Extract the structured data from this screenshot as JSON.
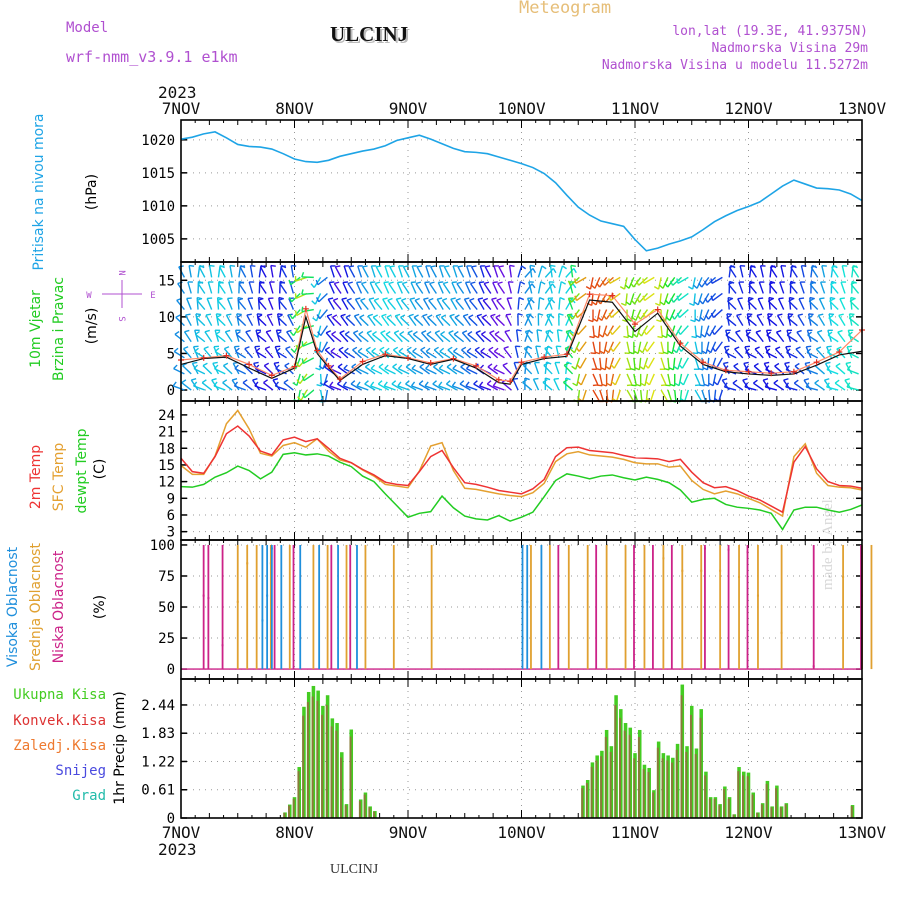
{
  "header": {
    "model_label": "Model",
    "model_name": "wrf-nmm_v3.9.1 e1km",
    "station": "ULCINJ",
    "title": "Meteogram",
    "lonlat": "lon,lat (19.3E, 41.9375N)",
    "elevation": "Nadmorska Visina 29m",
    "model_elevation": "Nadmorska Visina u modelu 11.5272m",
    "footer_station": "ULCINJ",
    "credit": "made by Angel",
    "year": "2023"
  },
  "time_axis": {
    "labels": [
      "7NOV",
      "8NOV",
      "9NOV",
      "10NOV",
      "11NOV",
      "12NOV",
      "13NOV"
    ]
  },
  "colors": {
    "pressure": "#1ea4e6",
    "temp2m": "#ee3333",
    "sfctemp": "#e4a030",
    "dewpt": "#22cc22",
    "high_cloud": "#1f8fdc",
    "mid_cloud": "#e0a030",
    "low_cloud": "#cc2288",
    "total_precip": "#44cc22",
    "conv_precip": "#dd3333",
    "grid_precip": "#ee7a30",
    "snow": "#4a4adf",
    "graupel": "#22bbaa",
    "label_purple": "#b050d0"
  },
  "chart_data": [
    {
      "type": "line",
      "panel": "pressure",
      "ylabel": "Pritisak na nivou mora",
      "units": "(hPa)",
      "ylim": [
        1001.5,
        1023
      ],
      "yticks": [
        1005,
        1010,
        1015,
        1020
      ],
      "grid": true,
      "x_days": [
        0,
        0.1,
        0.2,
        0.3,
        0.4,
        0.5,
        0.6,
        0.7,
        0.8,
        0.9,
        1.0,
        1.1,
        1.2,
        1.3,
        1.4,
        1.5,
        1.6,
        1.7,
        1.8,
        1.9,
        2.0,
        2.1,
        2.2,
        2.3,
        2.4,
        2.5,
        2.6,
        2.7,
        2.8,
        2.9,
        3.0,
        3.1,
        3.2,
        3.3,
        3.4,
        3.5,
        3.6,
        3.7,
        3.8,
        3.9,
        4.0,
        4.1,
        4.2,
        4.3,
        4.4,
        4.5,
        4.6,
        4.7,
        4.8,
        4.9,
        5.0,
        5.1,
        5.2,
        5.3,
        5.4,
        5.5,
        5.6,
        5.7,
        5.8,
        5.9,
        6.0
      ],
      "series": [
        {
          "values": [
            1020.1,
            1020.4,
            1020.9,
            1021.2,
            1020.3,
            1019.3,
            1019.0,
            1018.9,
            1018.6,
            1017.9,
            1017.1,
            1016.7,
            1016.6,
            1016.9,
            1017.5,
            1017.9,
            1018.3,
            1018.6,
            1019.1,
            1019.9,
            1020.3,
            1020.7,
            1020.1,
            1019.4,
            1018.7,
            1018.2,
            1018.1,
            1017.9,
            1017.4,
            1016.9,
            1016.4,
            1015.8,
            1014.9,
            1013.5,
            1011.6,
            1009.8,
            1008.6,
            1007.7,
            1007.3,
            1006.9,
            1004.9,
            1003.2,
            1003.6,
            1004.2,
            1004.7,
            1005.3,
            1006.4,
            1007.6,
            1008.5,
            1009.3,
            1009.9,
            1010.6,
            1011.8,
            1013.0,
            1013.9,
            1013.3,
            1012.7,
            1012.6,
            1012.4,
            1011.8,
            1010.8
          ]
        }
      ]
    },
    {
      "type": "line",
      "panel": "wind",
      "ylabel": "10m Vjetar Brzina i Pravac",
      "units": "(m/s)",
      "ylim": [
        -1.5,
        17.5
      ],
      "yticks": [
        0,
        5,
        10,
        15
      ],
      "grid": true,
      "compass": {
        "n": "N",
        "s": "S",
        "e": "E",
        "w": "W"
      },
      "x_days": [
        0,
        0.2,
        0.4,
        0.6,
        0.8,
        1.0,
        1.1,
        1.2,
        1.3,
        1.4,
        1.6,
        1.8,
        2.0,
        2.2,
        2.4,
        2.6,
        2.8,
        2.9,
        3.0,
        3.2,
        3.4,
        3.6,
        3.8,
        4.0,
        4.2,
        4.4,
        4.6,
        4.8,
        5.0,
        5.2,
        5.4,
        5.6,
        5.8,
        6.0
      ],
      "series": [
        {
          "values": [
            3.5,
            4.3,
            4.5,
            3.0,
            1.6,
            3.0,
            10.0,
            5.0,
            3.1,
            1.3,
            3.5,
            4.7,
            4.3,
            3.5,
            4.2,
            3.0,
            1.0,
            0.8,
            3.5,
            4.3,
            4.6,
            12.3,
            12.0,
            8.0,
            10.5,
            6.0,
            3.5,
            2.5,
            2.2,
            2.0,
            2.2,
            3.4,
            4.8,
            5.3
          ]
        },
        {
          "values": [
            4.1,
            4.4,
            4.7,
            3.5,
            2.0,
            3.2,
            11.1,
            5.4,
            3.3,
            1.5,
            3.9,
            4.9,
            4.4,
            3.7,
            4.3,
            3.3,
            1.4,
            1.2,
            3.8,
            4.5,
            4.9,
            13.1,
            12.9,
            9.0,
            11.0,
            6.4,
            3.8,
            2.7,
            2.5,
            2.3,
            2.5,
            3.8,
            5.2,
            8.2
          ]
        }
      ]
    },
    {
      "type": "line",
      "panel": "temperature",
      "ylabel": "2m Temp / SFC Temp / dewpt Temp",
      "units": "(C)",
      "ylim": [
        1.5,
        26.5
      ],
      "yticks": [
        3,
        6,
        9,
        12,
        15,
        18,
        21,
        24
      ],
      "grid": true,
      "x_days": [
        0,
        0.1,
        0.2,
        0.3,
        0.4,
        0.5,
        0.6,
        0.7,
        0.8,
        0.9,
        1.0,
        1.1,
        1.2,
        1.3,
        1.4,
        1.5,
        1.6,
        1.7,
        1.8,
        1.9,
        2.0,
        2.1,
        2.2,
        2.3,
        2.4,
        2.5,
        2.6,
        2.7,
        2.8,
        2.9,
        3.0,
        3.1,
        3.2,
        3.3,
        3.4,
        3.5,
        3.6,
        3.7,
        3.8,
        3.9,
        4.0,
        4.1,
        4.2,
        4.3,
        4.4,
        4.5,
        4.6,
        4.7,
        4.8,
        4.9,
        5.0,
        5.1,
        5.2,
        5.3,
        5.4,
        5.5,
        5.6,
        5.7,
        5.8,
        5.9,
        6.0
      ],
      "series": [
        {
          "values": [
            16.2,
            13.8,
            13.5,
            16.5,
            20.6,
            22.0,
            20.2,
            17.5,
            16.8,
            19.5,
            20.0,
            19.2,
            19.7,
            18.0,
            16.2,
            15.4,
            14.2,
            13.2,
            11.9,
            11.5,
            11.3,
            13.8,
            16.5,
            17.6,
            14.5,
            11.8,
            11.5,
            11.0,
            10.4,
            10.1,
            9.8,
            10.7,
            12.4,
            16.5,
            18.1,
            18.2,
            17.6,
            17.4,
            17.2,
            16.7,
            16.3,
            16.2,
            16.1,
            15.6,
            16.0,
            13.7,
            11.8,
            10.9,
            11.1,
            10.4,
            9.4,
            8.7,
            7.6,
            6.5,
            15.5,
            18.3,
            14.3,
            12.0,
            11.3,
            11.2,
            10.8
          ]
        },
        {
          "values": [
            14.9,
            13.3,
            13.3,
            16.6,
            22.4,
            24.8,
            21.5,
            17.1,
            16.6,
            18.5,
            19.0,
            18.2,
            19.7,
            17.5,
            15.9,
            15.4,
            14.1,
            13.0,
            11.5,
            11.2,
            10.9,
            13.9,
            18.4,
            19.0,
            14.0,
            10.8,
            10.6,
            10.2,
            9.8,
            9.5,
            9.3,
            10.0,
            11.7,
            15.6,
            17.0,
            17.4,
            16.8,
            16.6,
            16.4,
            16.0,
            15.4,
            15.2,
            15.2,
            14.6,
            14.8,
            12.2,
            10.6,
            9.8,
            10.3,
            9.8,
            9.0,
            8.2,
            7.0,
            5.8,
            16.5,
            18.8,
            13.5,
            11.3,
            11.0,
            10.9,
            10.5
          ]
        },
        {
          "values": [
            11.1,
            11.0,
            11.5,
            12.8,
            13.6,
            14.8,
            14.0,
            12.5,
            13.7,
            16.9,
            17.2,
            16.8,
            17.0,
            16.6,
            15.5,
            14.7,
            13.0,
            12.0,
            9.8,
            7.7,
            5.6,
            6.3,
            6.6,
            9.4,
            7.3,
            5.8,
            5.3,
            5.1,
            5.9,
            4.9,
            5.6,
            6.5,
            9.3,
            12.2,
            13.4,
            13.0,
            12.5,
            13.0,
            13.2,
            12.7,
            12.3,
            12.8,
            12.4,
            11.8,
            10.5,
            8.3,
            8.8,
            9.0,
            7.9,
            7.4,
            7.2,
            6.9,
            6.3,
            3.4,
            6.9,
            7.4,
            7.4,
            6.9,
            6.5,
            7.0,
            7.8
          ]
        }
      ]
    },
    {
      "type": "bar",
      "panel": "cloud",
      "ylabel": "Visoka / Srednja / Niska Oblacnost",
      "units": "(%)",
      "ylim": [
        -8,
        104
      ],
      "yticks": [
        0,
        25,
        50,
        75,
        100
      ],
      "grid": true,
      "mid_cloud_hours": [
        [
          12,
          55,
          100
        ],
        [
          14,
          86,
          100
        ],
        [
          16,
          100,
          100
        ],
        [
          19,
          86,
          100
        ],
        [
          23,
          100,
          100
        ],
        [
          28,
          100,
          100
        ],
        [
          31,
          100,
          100
        ],
        [
          35,
          100,
          100
        ],
        [
          39,
          100,
          100
        ],
        [
          45,
          100,
          100
        ],
        [
          53,
          100,
          100
        ],
        [
          74,
          100,
          100
        ],
        [
          78,
          100,
          100
        ],
        [
          82,
          100,
          100
        ],
        [
          86,
          100,
          100
        ],
        [
          90,
          100,
          100
        ],
        [
          94,
          100,
          100
        ],
        [
          98,
          100,
          100
        ],
        [
          102,
          90,
          100
        ],
        [
          106,
          80,
          100
        ],
        [
          110,
          80,
          100
        ],
        [
          114,
          80,
          100
        ],
        [
          118,
          75,
          100
        ],
        [
          122,
          60,
          100
        ],
        [
          127,
          30,
          100
        ],
        [
          140,
          75,
          100
        ],
        [
          144,
          60,
          100
        ],
        [
          146,
          100,
          100
        ]
      ],
      "high_cloud_hours": [
        [
          17,
          40,
          100
        ],
        [
          18,
          60,
          100
        ],
        [
          19,
          98,
          100
        ],
        [
          21,
          100,
          100
        ],
        [
          25,
          100,
          100
        ],
        [
          29,
          100,
          100
        ],
        [
          33,
          100,
          100
        ],
        [
          37,
          100,
          100
        ],
        [
          72,
          100,
          100
        ],
        [
          73,
          55,
          100
        ],
        [
          76,
          100,
          100
        ]
      ],
      "low_cloud_hours": [
        [
          5,
          60,
          100
        ],
        [
          6,
          58,
          100
        ],
        [
          9,
          20,
          100
        ],
        [
          20,
          100,
          100
        ],
        [
          24,
          100,
          100
        ],
        [
          32,
          100,
          100
        ],
        [
          36,
          100,
          100
        ],
        [
          80,
          100,
          100
        ],
        [
          88,
          100,
          100
        ],
        [
          96,
          100,
          100
        ],
        [
          100,
          100,
          100
        ],
        [
          104,
          100,
          100
        ],
        [
          111,
          98,
          100
        ],
        [
          116,
          97,
          100
        ],
        [
          120,
          95,
          100
        ],
        [
          134,
          3,
          100
        ],
        [
          144,
          100,
          100
        ]
      ]
    },
    {
      "type": "bar",
      "panel": "precip",
      "ylabel": "1hr Precip",
      "units": "(mm)",
      "ylim": [
        0,
        3.0
      ],
      "yticks": [
        0,
        0.61,
        1.22,
        1.83,
        2.44
      ],
      "ytick_labels": [
        "0",
        "0.61",
        "1.22",
        "1.83",
        "2.44"
      ],
      "grid": true,
      "legend": [
        "Ukupna Kisa",
        "Konvek.Kisa",
        "Zaledj.Kisa",
        "Snijeg",
        "Grad"
      ],
      "x_hours": [
        22,
        23,
        24,
        25,
        26,
        27,
        28,
        29,
        30,
        31,
        32,
        33,
        34,
        35,
        36,
        38,
        39,
        40,
        41,
        85,
        86,
        87,
        88,
        89,
        90,
        91,
        92,
        93,
        94,
        95,
        96,
        97,
        98,
        99,
        100,
        101,
        102,
        103,
        104,
        105,
        106,
        107,
        108,
        109,
        110,
        111,
        112,
        113,
        114,
        115,
        116,
        117,
        118,
        119,
        120,
        121,
        122,
        123,
        124,
        125,
        126,
        127,
        128,
        142
      ],
      "values": [
        0.12,
        0.29,
        0.45,
        1.1,
        2.4,
        2.72,
        2.85,
        2.75,
        2.42,
        2.65,
        2.15,
        2.05,
        1.42,
        0.3,
        1.91,
        0.4,
        0.55,
        0.25,
        0.15,
        0.7,
        0.82,
        1.2,
        1.35,
        1.45,
        1.9,
        1.55,
        2.65,
        2.35,
        2.05,
        1.95,
        1.4,
        1.9,
        1.15,
        1.08,
        0.6,
        1.65,
        1.4,
        1.35,
        1.3,
        1.6,
        2.88,
        1.55,
        2.42,
        1.5,
        2.35,
        1.0,
        0.45,
        0.45,
        0.3,
        0.68,
        0.45,
        0.08,
        1.1,
        1.0,
        0.98,
        0.55,
        0.12,
        0.32,
        0.8,
        0.25,
        0.7,
        0.25,
        0.32,
        0.28
      ]
    }
  ]
}
